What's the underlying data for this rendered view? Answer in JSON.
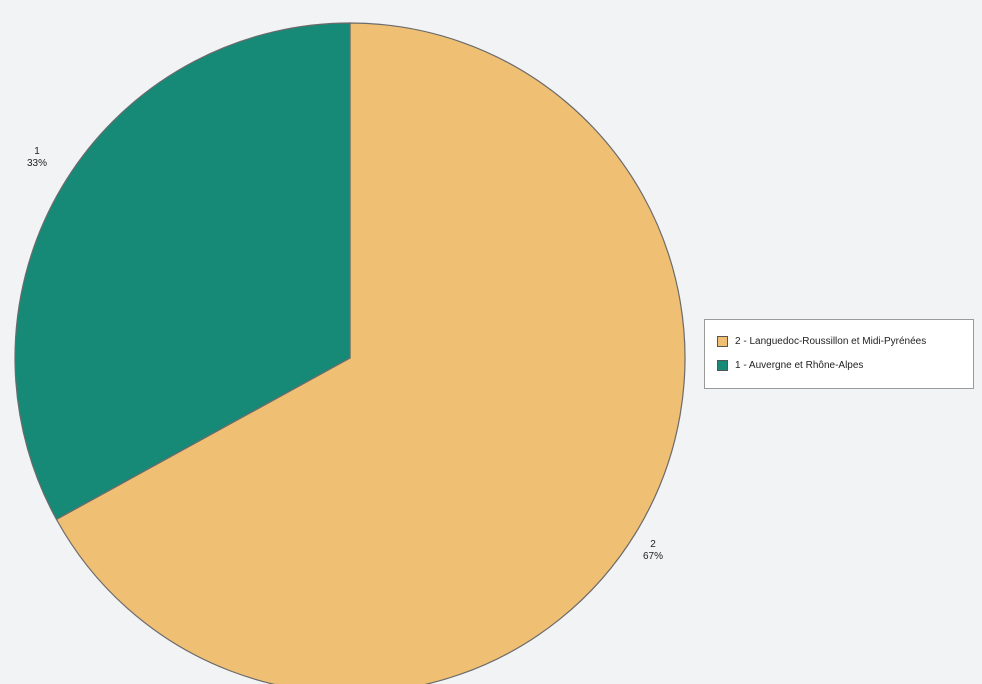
{
  "chart_data": {
    "type": "pie",
    "slices": [
      {
        "id": "1",
        "value": 33,
        "label_number": "1",
        "label_percent": "33%",
        "legend": "1 - Auvergne et Rhône-Alpes",
        "color": "#178a77"
      },
      {
        "id": "2",
        "value": 67,
        "label_number": "2",
        "label_percent": "67%",
        "legend": "2 - Languedoc-Roussillon et Midi-Pyrénées",
        "color": "#efbf73"
      }
    ],
    "legend_order": [
      "2",
      "1"
    ],
    "legend_position": "right",
    "slice_border_color": "#6b6b6b",
    "background_color": "#f2f3f5"
  }
}
